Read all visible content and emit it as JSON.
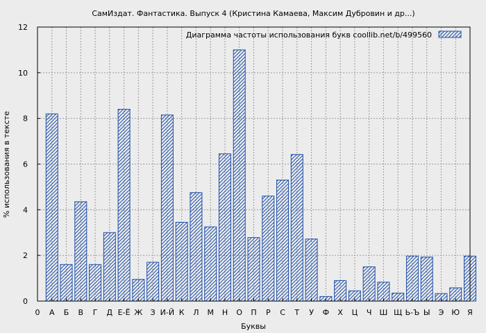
{
  "chart_data": {
    "type": "bar",
    "title": "СамИздат. Фантастика. Выпуск 4 (Кристина Камаева, Максим Дубровин и др...)",
    "xlabel": "Буквы",
    "ylabel": "% использования в тексте",
    "legend": "Диаграмма частоты использования букв  coollib.net/b/499560",
    "legend_position": "top-right",
    "grid": true,
    "ylim": [
      0,
      12
    ],
    "yticks": [
      "0",
      "2",
      "4",
      "6",
      "8",
      "10",
      "12"
    ],
    "x_tick_labels": [
      "0",
      "А",
      "Б",
      "В",
      "Г",
      "Д",
      "Е-Ё",
      "Ж",
      "З",
      "И-Й",
      "К",
      "Л",
      "М",
      "Н",
      "О",
      "П",
      "Р",
      "С",
      "Т",
      "У",
      "Ф",
      "Х",
      "Ц",
      "Ч",
      "Ш",
      "Щ",
      "Ь-Ъ",
      "Ы",
      "Э",
      "Ю",
      "Я"
    ],
    "categories": [
      "А",
      "Б",
      "В",
      "Г",
      "Д",
      "Е-Ё",
      "Ж",
      "З",
      "И-Й",
      "К",
      "Л",
      "М",
      "Н",
      "О",
      "П",
      "Р",
      "С",
      "Т",
      "У",
      "Ф",
      "Х",
      "Ц",
      "Ч",
      "Ш",
      "Щ",
      "Ь-Ъ",
      "Ы",
      "Э",
      "Ю",
      "Я"
    ],
    "values": [
      8.2,
      1.6,
      4.35,
      1.6,
      3.0,
      8.4,
      0.95,
      1.7,
      8.15,
      3.45,
      4.75,
      3.25,
      6.45,
      11.0,
      2.78,
      4.6,
      5.3,
      6.42,
      2.72,
      0.2,
      0.9,
      0.45,
      1.5,
      0.83,
      0.35,
      1.97,
      1.93,
      0.33,
      0.58,
      1.97
    ],
    "colors": {
      "bar_stroke": "#1f4fa8",
      "hatch": "#1f4fa8",
      "grid": "#9a9a9a",
      "background": "#ececec"
    }
  }
}
